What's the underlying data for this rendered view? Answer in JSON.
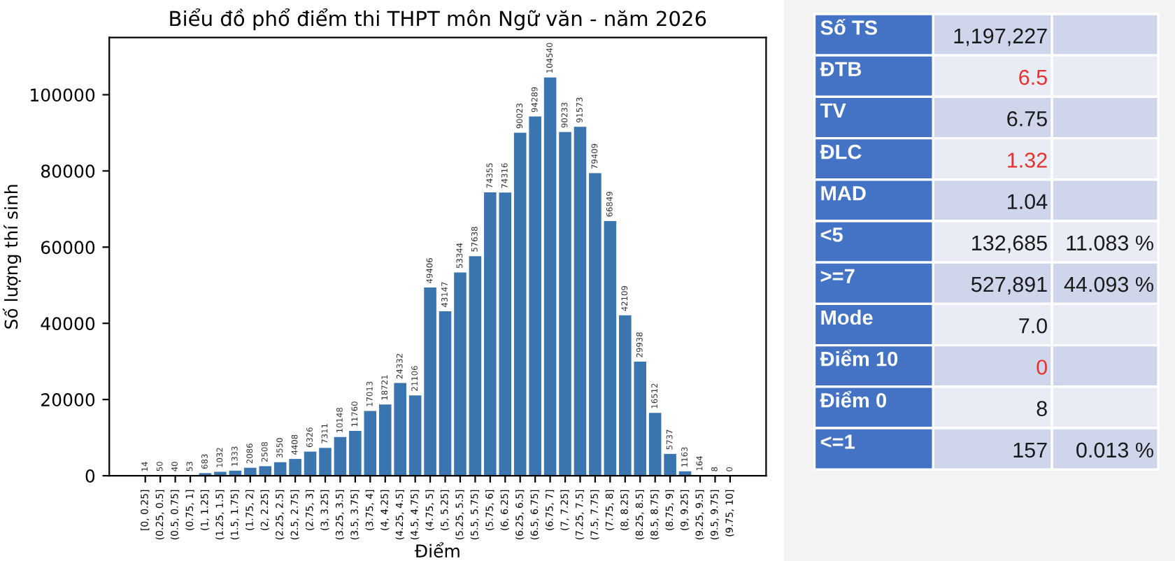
{
  "chart_data": [
    {
      "type": "bar",
      "title": "Biểu đồ phổ điểm thi THPT môn Ngữ văn - năm 2026",
      "xlabel": "Điểm",
      "ylabel": "Số lượng thí sinh",
      "categories": [
        "[0, 0.25]",
        "(0.25, 0.5]",
        "(0.5, 0.75]",
        "(0.75, 1]",
        "(1, 1.25]",
        "(1.25, 1.5]",
        "(1.5, 1.75]",
        "(1.75, 2]",
        "(2, 2.25]",
        "(2.25, 2.5]",
        "(2.5, 2.75]",
        "(2.75, 3]",
        "(3, 3.25]",
        "(3.25, 3.5]",
        "(3.5, 3.75]",
        "(3.75, 4]",
        "(4, 4.25]",
        "(4.25, 4.5]",
        "(4.5, 4.75]",
        "(4.75, 5]",
        "(5, 5.25]",
        "(5.25, 5.5]",
        "(5.5, 5.75]",
        "(5.75, 6]",
        "(6, 6.25]",
        "(6.25, 6.5]",
        "(6.5, 6.75]",
        "(6.75, 7]",
        "(7, 7.25]",
        "(7.25, 7.5]",
        "(7.5, 7.75]",
        "(7.75, 8]",
        "(8, 8.25]",
        "(8.25, 8.5]",
        "(8.5, 8.75]",
        "(8.75, 9]",
        "(9, 9.25]",
        "(9.25, 9.5]",
        "(9.5, 9.75]",
        "(9.75, 10]"
      ],
      "values": [
        14,
        50,
        40,
        53,
        683,
        1032,
        1333,
        2086,
        2508,
        3550,
        4408,
        6326,
        7311,
        10148,
        11760,
        17013,
        18721,
        24332,
        21106,
        49406,
        43147,
        53344,
        57638,
        74355,
        74316,
        90023,
        94289,
        104540,
        90233,
        91573,
        79409,
        66849,
        42109,
        29938,
        16512,
        5737,
        1163,
        164,
        8,
        0
      ],
      "color": "#3a75af",
      "ylim": [
        0,
        115000
      ],
      "yticks": [
        0,
        20000,
        40000,
        60000,
        80000,
        100000
      ],
      "data_labels": true,
      "grid": false,
      "legend": false
    },
    {
      "type": "other",
      "y_categories": [
        "Số TS",
        "ĐTB",
        "TV",
        "ĐLC",
        "MAD",
        "<5",
        ">=7",
        "Mode",
        "Điểm 10",
        "Điểm 0",
        "<=1"
      ],
      "cell_labels": [
        [
          "1,197,227",
          null
        ],
        [
          "6.5",
          null
        ],
        [
          "6.75",
          null
        ],
        [
          "1.32",
          null
        ],
        [
          "1.04",
          null
        ],
        [
          "132,685",
          "11.083 %"
        ],
        [
          "527,891",
          "44.093 %"
        ],
        [
          "7.0",
          null
        ],
        [
          "0",
          null
        ],
        [
          "8",
          null
        ],
        [
          "157",
          "0.013 %"
        ]
      ],
      "colors": [
        [
          "#1a1a1a",
          null
        ],
        [
          "#e8312a",
          null
        ],
        [
          "#1a1a1a",
          null
        ],
        [
          "#e8312a",
          null
        ],
        [
          "#1a1a1a",
          null
        ],
        [
          "#1a1a1a",
          "#1a1a1a"
        ],
        [
          "#1a1a1a",
          "#1a1a1a"
        ],
        [
          "#1a1a1a",
          null
        ],
        [
          "#e8312a",
          null
        ],
        [
          "#1a1a1a",
          null
        ],
        [
          "#1a1a1a",
          "#1a1a1a"
        ]
      ]
    }
  ]
}
